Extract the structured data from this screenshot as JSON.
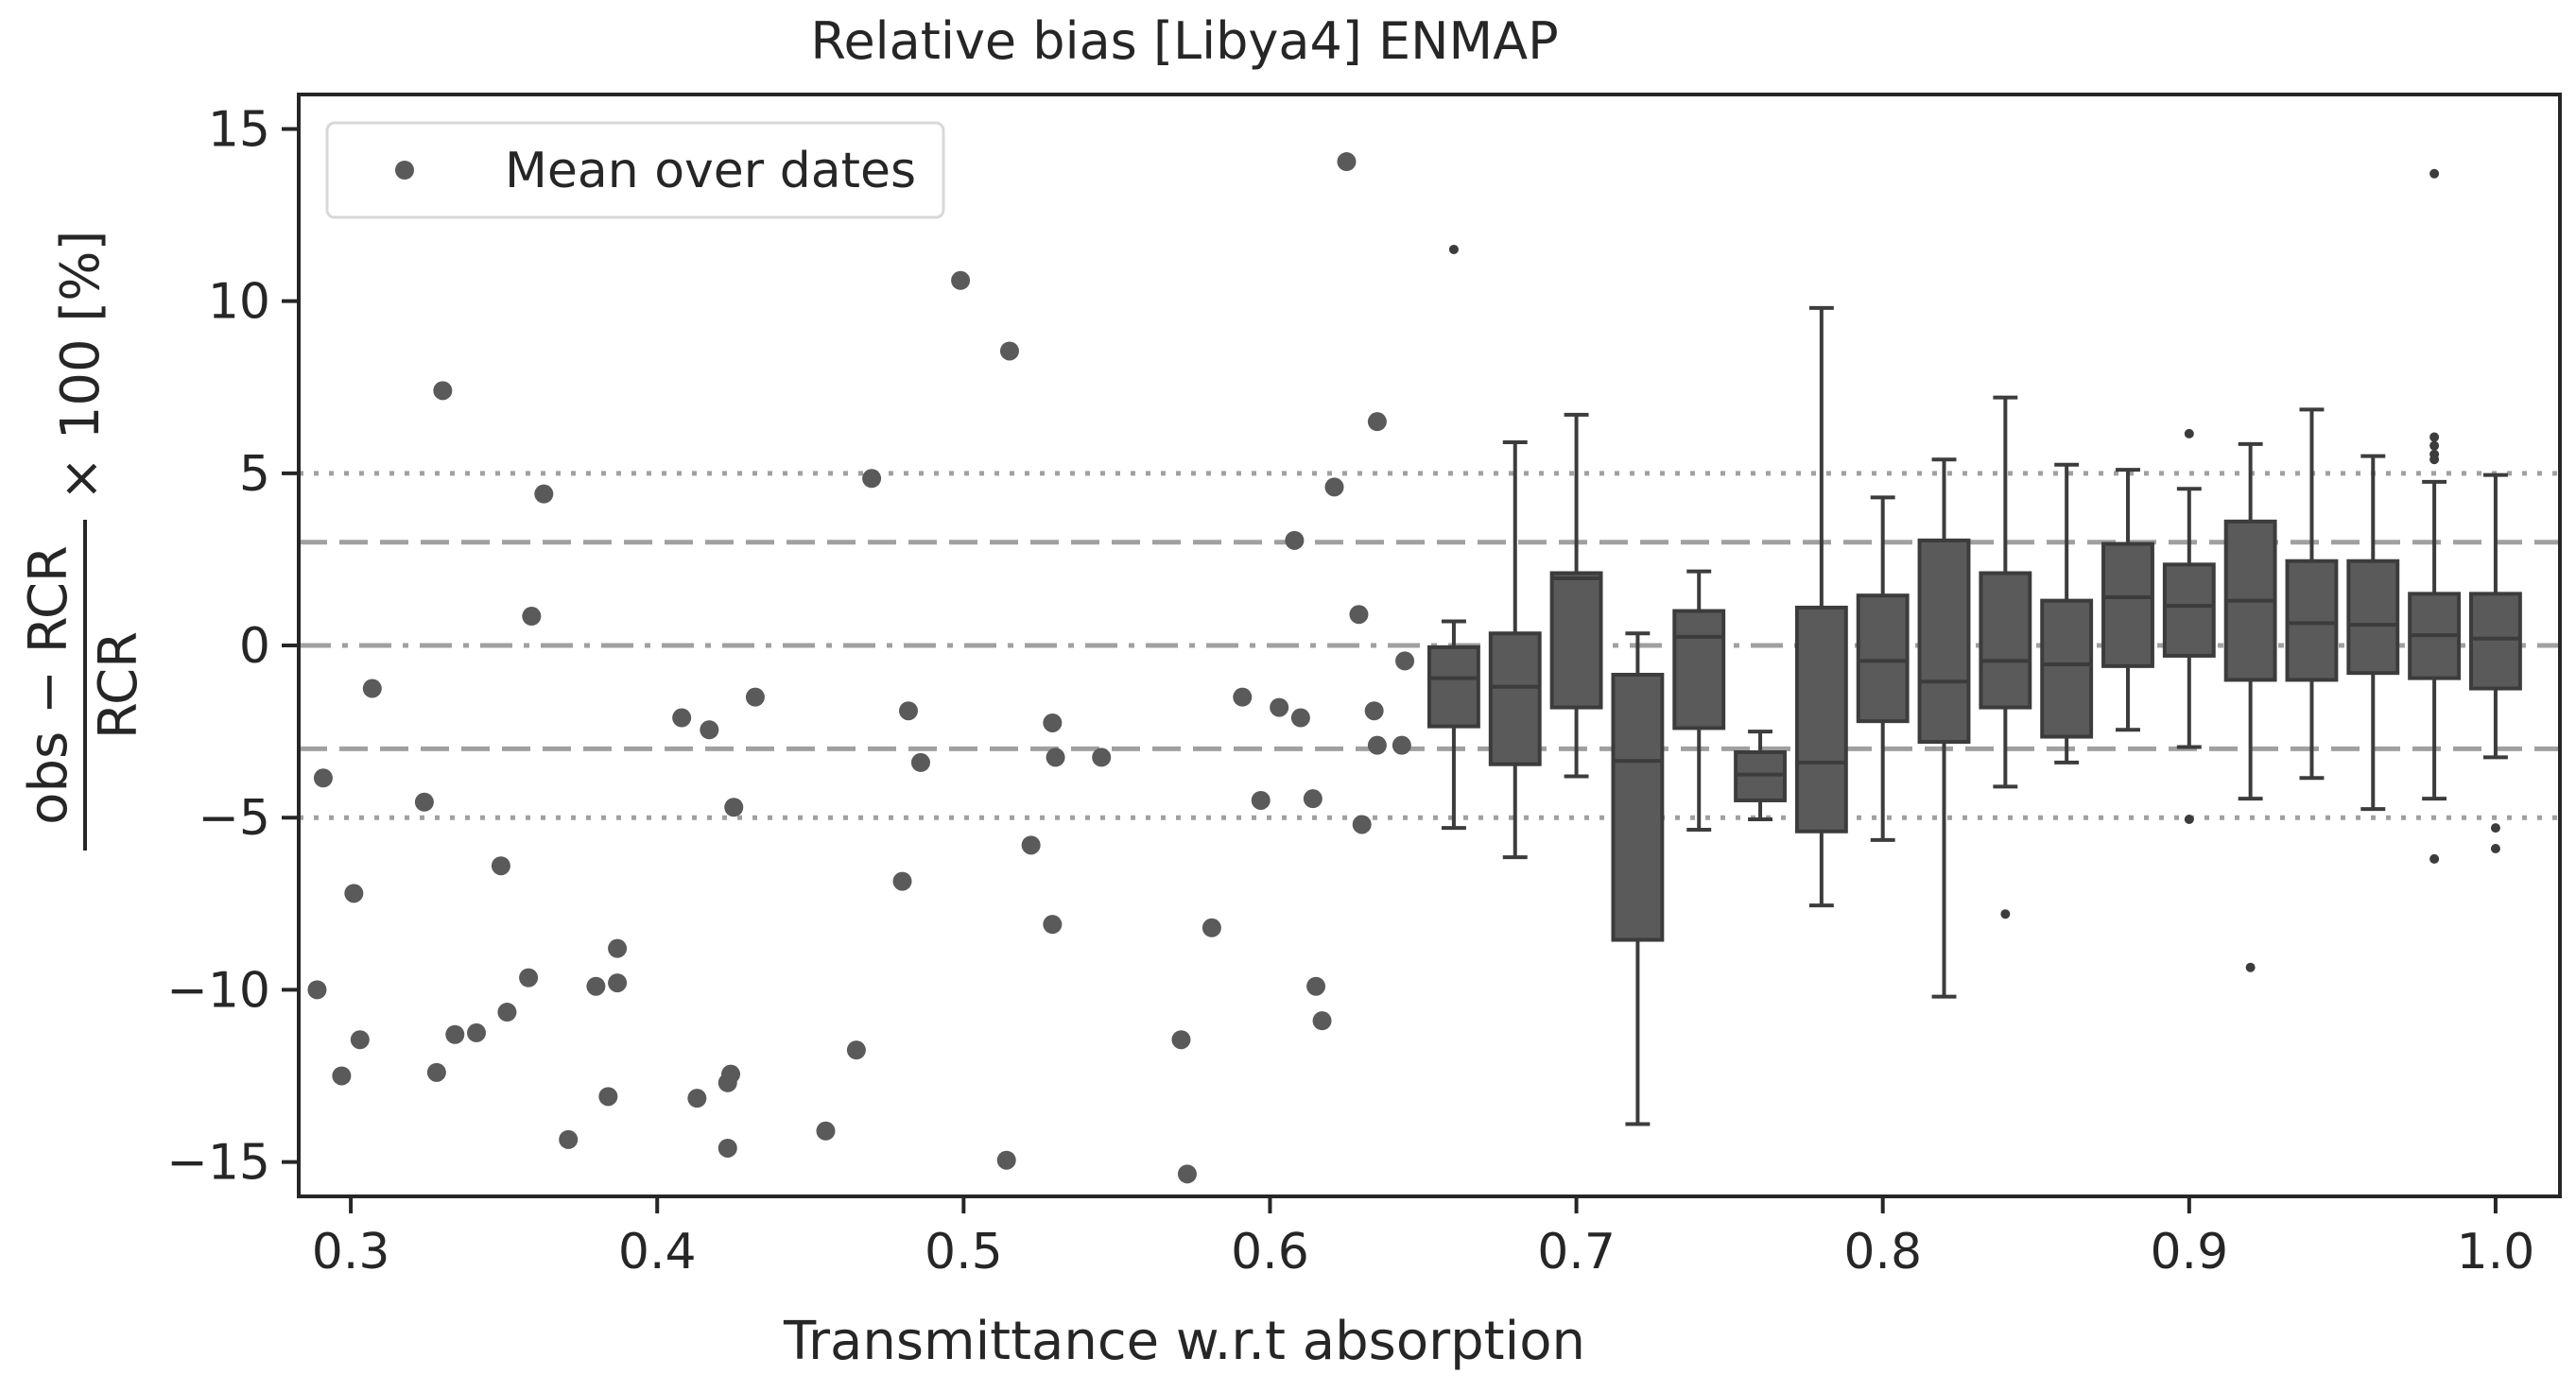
{
  "chart_data": {
    "type": "scatter",
    "title": "Relative bias [Libya4] ENMAP",
    "xlabel": "Transmittance w.r.t absorption",
    "ylabel": {
      "numerator": "obs − RCR",
      "denominator": "RCR",
      "suffix": "× 100 [%]"
    },
    "xlim": [
      0.283,
      1.021
    ],
    "ylim": [
      -16.0,
      16.0
    ],
    "xticks": [
      0.3,
      0.4,
      0.5,
      0.6,
      0.7,
      0.8,
      0.9,
      1.0
    ],
    "xtick_labels": [
      "0.3",
      "0.4",
      "0.5",
      "0.6",
      "0.7",
      "0.8",
      "0.9",
      "1.0"
    ],
    "yticks": [
      15,
      10,
      5,
      0,
      -5,
      -10,
      -15
    ],
    "ytick_labels": [
      "15",
      "10",
      "5",
      "0",
      "−5",
      "−10",
      "−15"
    ],
    "grid": false,
    "legend": {
      "position": "top-left",
      "entries": [
        "Mean over dates"
      ]
    },
    "colors": {
      "marker": "#5a5a5a",
      "box": "#5a5a5a",
      "edge": "#3c3c3c",
      "reference": "#a0a0a0",
      "frame": "#262626"
    },
    "reference_lines": [
      {
        "y": 0,
        "style": "dashdot"
      },
      {
        "y": 3,
        "style": "dashed"
      },
      {
        "y": -3,
        "style": "dashed"
      },
      {
        "y": 5,
        "style": "dotted"
      },
      {
        "y": -5,
        "style": "dotted"
      }
    ],
    "series": [
      {
        "name": "Mean over dates",
        "kind": "scatter",
        "points": [
          [
            0.289,
            -10.0
          ],
          [
            0.291,
            -3.85
          ],
          [
            0.297,
            -12.5
          ],
          [
            0.301,
            -7.2
          ],
          [
            0.303,
            -11.45
          ],
          [
            0.307,
            -1.25
          ],
          [
            0.324,
            -4.55
          ],
          [
            0.328,
            -12.4
          ],
          [
            0.33,
            7.4
          ],
          [
            0.334,
            -11.3
          ],
          [
            0.341,
            -11.25
          ],
          [
            0.349,
            -6.4
          ],
          [
            0.351,
            -10.65
          ],
          [
            0.358,
            -9.65
          ],
          [
            0.359,
            0.85
          ],
          [
            0.363,
            4.4
          ],
          [
            0.371,
            -14.35
          ],
          [
            0.38,
            -9.9
          ],
          [
            0.384,
            -13.1
          ],
          [
            0.387,
            -8.8
          ],
          [
            0.387,
            -9.8
          ],
          [
            0.408,
            -2.1
          ],
          [
            0.413,
            -13.15
          ],
          [
            0.417,
            -2.45
          ],
          [
            0.423,
            -12.7
          ],
          [
            0.423,
            -14.6
          ],
          [
            0.424,
            -12.45
          ],
          [
            0.425,
            -4.7
          ],
          [
            0.432,
            -1.5
          ],
          [
            0.455,
            -14.1
          ],
          [
            0.465,
            -11.75
          ],
          [
            0.47,
            4.85
          ],
          [
            0.48,
            -6.85
          ],
          [
            0.482,
            -1.9
          ],
          [
            0.486,
            -3.4
          ],
          [
            0.499,
            10.6
          ],
          [
            0.514,
            -14.95
          ],
          [
            0.515,
            8.55
          ],
          [
            0.522,
            -5.8
          ],
          [
            0.529,
            -8.1
          ],
          [
            0.529,
            -2.25
          ],
          [
            0.53,
            -3.25
          ],
          [
            0.545,
            -3.25
          ],
          [
            0.571,
            -11.45
          ],
          [
            0.573,
            -15.35
          ],
          [
            0.581,
            -8.2
          ],
          [
            0.591,
            -1.5
          ],
          [
            0.597,
            -4.5
          ],
          [
            0.603,
            -1.8
          ],
          [
            0.608,
            3.05
          ],
          [
            0.61,
            -2.1
          ],
          [
            0.614,
            -4.45
          ],
          [
            0.615,
            -9.9
          ],
          [
            0.617,
            -10.9
          ],
          [
            0.621,
            4.6
          ],
          [
            0.625,
            14.05
          ],
          [
            0.629,
            0.9
          ],
          [
            0.63,
            -5.2
          ],
          [
            0.634,
            -1.9
          ],
          [
            0.635,
            -2.9
          ],
          [
            0.635,
            6.5
          ],
          [
            0.643,
            -2.9
          ],
          [
            0.644,
            -0.45
          ]
        ]
      },
      {
        "name": "",
        "kind": "box",
        "boxes": [
          {
            "x": 0.66,
            "whislo": -5.3,
            "q1": -2.35,
            "med": -0.95,
            "q3": -0.05,
            "whishi": 0.7,
            "fliers": [
              11.5
            ]
          },
          {
            "x": 0.68,
            "whislo": -6.15,
            "q1": -3.45,
            "med": -1.2,
            "q3": 0.35,
            "whishi": 5.9,
            "fliers": []
          },
          {
            "x": 0.7,
            "whislo": -3.8,
            "q1": -1.8,
            "med": 1.95,
            "q3": 2.1,
            "whishi": 6.7,
            "fliers": []
          },
          {
            "x": 0.72,
            "whislo": -13.9,
            "q1": -8.55,
            "med": -3.35,
            "q3": -0.85,
            "whishi": 0.35,
            "fliers": []
          },
          {
            "x": 0.74,
            "whislo": -5.35,
            "q1": -2.4,
            "med": 0.25,
            "q3": 1.0,
            "whishi": 2.15,
            "fliers": []
          },
          {
            "x": 0.76,
            "whislo": -5.05,
            "q1": -4.5,
            "med": -3.75,
            "q3": -3.1,
            "whishi": -2.5,
            "fliers": []
          },
          {
            "x": 0.78,
            "whislo": -7.55,
            "q1": -5.4,
            "med": -3.4,
            "q3": 1.1,
            "whishi": 9.8,
            "fliers": []
          },
          {
            "x": 0.8,
            "whislo": -5.65,
            "q1": -2.2,
            "med": -0.45,
            "q3": 1.45,
            "whishi": 4.3,
            "fliers": []
          },
          {
            "x": 0.82,
            "whislo": -10.2,
            "q1": -2.8,
            "med": -1.05,
            "q3": 3.05,
            "whishi": 5.4,
            "fliers": []
          },
          {
            "x": 0.84,
            "whislo": -4.1,
            "q1": -1.8,
            "med": -0.45,
            "q3": 2.1,
            "whishi": 7.2,
            "fliers": [
              -7.8
            ]
          },
          {
            "x": 0.86,
            "whislo": -3.4,
            "q1": -2.65,
            "med": -0.55,
            "q3": 1.3,
            "whishi": 5.25,
            "fliers": []
          },
          {
            "x": 0.88,
            "whislo": -2.45,
            "q1": -0.6,
            "med": 1.4,
            "q3": 2.95,
            "whishi": 5.1,
            "fliers": []
          },
          {
            "x": 0.9,
            "whislo": -2.95,
            "q1": -0.3,
            "med": 1.15,
            "q3": 2.35,
            "whishi": 4.55,
            "fliers": [
              6.15,
              -5.05
            ]
          },
          {
            "x": 0.92,
            "whislo": -4.45,
            "q1": -1.0,
            "med": 1.3,
            "q3": 3.6,
            "whishi": 5.85,
            "fliers": [
              -9.35
            ]
          },
          {
            "x": 0.94,
            "whislo": -3.85,
            "q1": -1.0,
            "med": 0.65,
            "q3": 2.45,
            "whishi": 6.85,
            "fliers": []
          },
          {
            "x": 0.96,
            "whislo": -4.75,
            "q1": -0.8,
            "med": 0.6,
            "q3": 2.45,
            "whishi": 5.5,
            "fliers": []
          },
          {
            "x": 0.98,
            "whislo": -4.45,
            "q1": -0.95,
            "med": 0.3,
            "q3": 1.5,
            "whishi": 4.75,
            "fliers": [
              13.7,
              6.05,
              5.8,
              5.55,
              5.4,
              -6.2
            ]
          },
          {
            "x": 1.0,
            "whislo": -3.25,
            "q1": -1.25,
            "med": 0.2,
            "q3": 1.5,
            "whishi": 4.95,
            "fliers": [
              -5.3,
              -5.9
            ]
          }
        ]
      }
    ]
  }
}
